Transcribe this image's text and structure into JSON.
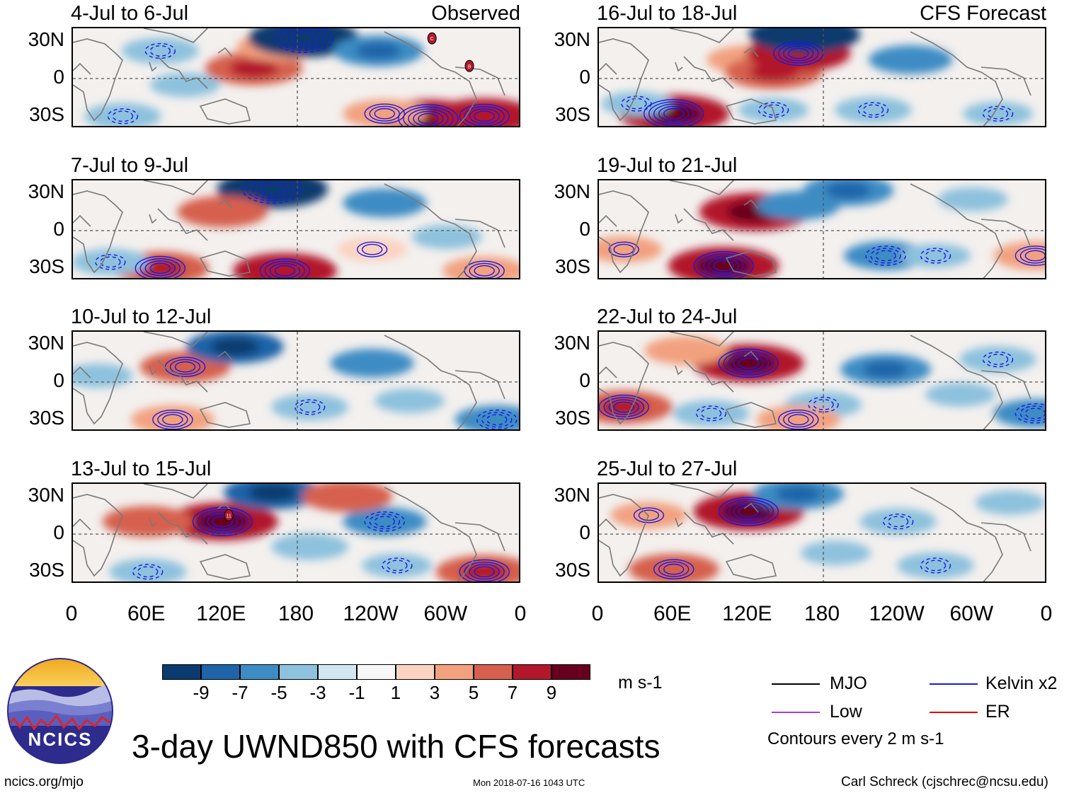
{
  "figure_title": "3-day UWND850 with CFS forecasts",
  "logo_text": "NCICS",
  "site_url": "ncics.org/mjo",
  "timestamp": "Mon 2018-07-16 1043 UTC",
  "author": "Carl Schreck (cjschrec@ncsu.edu)",
  "columns": {
    "observed_label": "Observed",
    "forecast_label": "CFS Forecast"
  },
  "colorbar": {
    "unit": "m s-1",
    "colors": [
      "#0b3a6e",
      "#1f63a8",
      "#3d8cc4",
      "#8dc1dd",
      "#d2e6f1",
      "#f7f7f7",
      "#fbd3c1",
      "#f2a17f",
      "#d6604d",
      "#b2182b",
      "#67001f"
    ],
    "tick_labels": [
      "-9",
      "-7",
      "-5",
      "-3",
      "-1",
      "1",
      "3",
      "5",
      "7",
      "9"
    ]
  },
  "legend": {
    "mjo": "MJO",
    "low": "Low",
    "kelvin": "Kelvin x2",
    "er": "ER",
    "colors": {
      "mjo": "#000000",
      "low": "#a040e0",
      "kelvin": "#1a1ae6",
      "er": "#e00000"
    },
    "contour_note": "Contours every 2 m s-1"
  },
  "chart_data": {
    "type": "heatmap",
    "variable": "850-hPa zonal wind anomaly, 3-day mean",
    "unit": "m s-1",
    "x_ticks": [
      "0",
      "60E",
      "120E",
      "180",
      "120W",
      "60W",
      "0"
    ],
    "y_ticks": [
      "30N",
      "0",
      "30S"
    ],
    "lon_range": [
      0,
      360
    ],
    "lat_range": [
      -40,
      40
    ],
    "contour_interval": 2,
    "panels": [
      {
        "title": "4-Jul to 6-Jul",
        "source": "Observed",
        "header": "Observed",
        "blobs": [
          {
            "lon": 70,
            "lat": 22,
            "val": -4
          },
          {
            "lon": 145,
            "lat": 8,
            "val": 7
          },
          {
            "lon": 165,
            "lat": 25,
            "val": 5
          },
          {
            "lon": 185,
            "lat": 32,
            "val": -9
          },
          {
            "lon": 245,
            "lat": 22,
            "val": -6
          },
          {
            "lon": 285,
            "lat": -32,
            "val": 9
          },
          {
            "lon": 330,
            "lat": -30,
            "val": 8
          },
          {
            "lon": 250,
            "lat": -28,
            "val": 5
          },
          {
            "lon": 90,
            "lat": -5,
            "val": -3
          },
          {
            "lon": 40,
            "lat": -30,
            "val": -4
          }
        ],
        "storms": [
          {
            "lon": 288,
            "lat": 32,
            "label": "C"
          },
          {
            "lon": 318,
            "lat": 10,
            "label": "B"
          }
        ]
      },
      {
        "title": "16-Jul to 18-Jul",
        "source": "CFS Forecast",
        "header": "CFS Forecast",
        "blobs": [
          {
            "lon": 60,
            "lat": -28,
            "val": 9
          },
          {
            "lon": 120,
            "lat": 15,
            "val": 5
          },
          {
            "lon": 140,
            "lat": 5,
            "val": 7
          },
          {
            "lon": 160,
            "lat": 20,
            "val": 8
          },
          {
            "lon": 165,
            "lat": 35,
            "val": -9
          },
          {
            "lon": 250,
            "lat": 15,
            "val": -5
          },
          {
            "lon": 220,
            "lat": -25,
            "val": -4
          },
          {
            "lon": 320,
            "lat": -28,
            "val": -3
          },
          {
            "lon": 30,
            "lat": -20,
            "val": -3
          },
          {
            "lon": 140,
            "lat": -25,
            "val": -3
          }
        ],
        "storms": []
      },
      {
        "title": "7-Jul to 9-Jul",
        "source": "Observed",
        "header": "",
        "blobs": [
          {
            "lon": 160,
            "lat": 33,
            "val": -9
          },
          {
            "lon": 120,
            "lat": 15,
            "val": 6
          },
          {
            "lon": 70,
            "lat": -30,
            "val": 7
          },
          {
            "lon": 170,
            "lat": -32,
            "val": 8
          },
          {
            "lon": 250,
            "lat": 22,
            "val": -5
          },
          {
            "lon": 300,
            "lat": -5,
            "val": -3
          },
          {
            "lon": 240,
            "lat": -15,
            "val": 3
          },
          {
            "lon": 330,
            "lat": -32,
            "val": 5
          },
          {
            "lon": 30,
            "lat": -25,
            "val": -4
          }
        ],
        "storms": []
      },
      {
        "title": "19-Jul to 21-Jul",
        "source": "CFS Forecast",
        "header": "",
        "blobs": [
          {
            "lon": 100,
            "lat": -28,
            "val": 9
          },
          {
            "lon": 125,
            "lat": 15,
            "val": 9
          },
          {
            "lon": 160,
            "lat": 20,
            "val": -5
          },
          {
            "lon": 230,
            "lat": -20,
            "val": -5
          },
          {
            "lon": 200,
            "lat": 32,
            "val": -6
          },
          {
            "lon": 270,
            "lat": -20,
            "val": -3
          },
          {
            "lon": 20,
            "lat": -15,
            "val": 4
          },
          {
            "lon": 350,
            "lat": -20,
            "val": 5
          },
          {
            "lon": 300,
            "lat": 25,
            "val": -3
          }
        ],
        "storms": []
      },
      {
        "title": "10-Jul to 12-Jul",
        "source": "Observed",
        "header": "",
        "blobs": [
          {
            "lon": 90,
            "lat": 12,
            "val": 6
          },
          {
            "lon": 130,
            "lat": 28,
            "val": -7
          },
          {
            "lon": 240,
            "lat": 15,
            "val": -5
          },
          {
            "lon": 190,
            "lat": -20,
            "val": -4
          },
          {
            "lon": 270,
            "lat": -15,
            "val": -3
          },
          {
            "lon": 80,
            "lat": -30,
            "val": 5
          },
          {
            "lon": 340,
            "lat": -30,
            "val": -5
          },
          {
            "lon": 20,
            "lat": 5,
            "val": -3
          }
        ],
        "storms": []
      },
      {
        "title": "22-Jul to 24-Jul",
        "source": "CFS Forecast",
        "header": "",
        "blobs": [
          {
            "lon": 120,
            "lat": 15,
            "val": 9
          },
          {
            "lon": 70,
            "lat": 25,
            "val": 5
          },
          {
            "lon": 20,
            "lat": -20,
            "val": 7
          },
          {
            "lon": 90,
            "lat": -25,
            "val": -4
          },
          {
            "lon": 230,
            "lat": 10,
            "val": -6
          },
          {
            "lon": 180,
            "lat": -18,
            "val": -4
          },
          {
            "lon": 320,
            "lat": 18,
            "val": -4
          },
          {
            "lon": 290,
            "lat": -10,
            "val": -3
          },
          {
            "lon": 350,
            "lat": -25,
            "val": -5
          },
          {
            "lon": 160,
            "lat": -30,
            "val": 5
          }
        ],
        "storms": []
      },
      {
        "title": "13-Jul to 15-Jul",
        "source": "Observed",
        "header": "",
        "blobs": [
          {
            "lon": 120,
            "lat": 10,
            "val": 9
          },
          {
            "lon": 60,
            "lat": 10,
            "val": 6
          },
          {
            "lon": 160,
            "lat": 33,
            "val": -7
          },
          {
            "lon": 250,
            "lat": 10,
            "val": -5
          },
          {
            "lon": 190,
            "lat": -10,
            "val": -4
          },
          {
            "lon": 330,
            "lat": -30,
            "val": 7
          },
          {
            "lon": 60,
            "lat": -30,
            "val": -4
          },
          {
            "lon": 220,
            "lat": 30,
            "val": 6
          },
          {
            "lon": 260,
            "lat": -25,
            "val": -3
          }
        ],
        "storms": [
          {
            "lon": 125,
            "lat": 15,
            "label": "11"
          }
        ]
      },
      {
        "title": "25-Jul to 27-Jul",
        "source": "CFS Forecast",
        "header": "",
        "blobs": [
          {
            "lon": 120,
            "lat": 18,
            "val": 9
          },
          {
            "lon": 160,
            "lat": 32,
            "val": -6
          },
          {
            "lon": 60,
            "lat": -28,
            "val": 6
          },
          {
            "lon": 240,
            "lat": 10,
            "val": -4
          },
          {
            "lon": 270,
            "lat": -25,
            "val": -4
          },
          {
            "lon": 190,
            "lat": -15,
            "val": -3
          },
          {
            "lon": 40,
            "lat": 15,
            "val": 4
          },
          {
            "lon": 330,
            "lat": 25,
            "val": -3
          }
        ],
        "storms": []
      }
    ]
  }
}
